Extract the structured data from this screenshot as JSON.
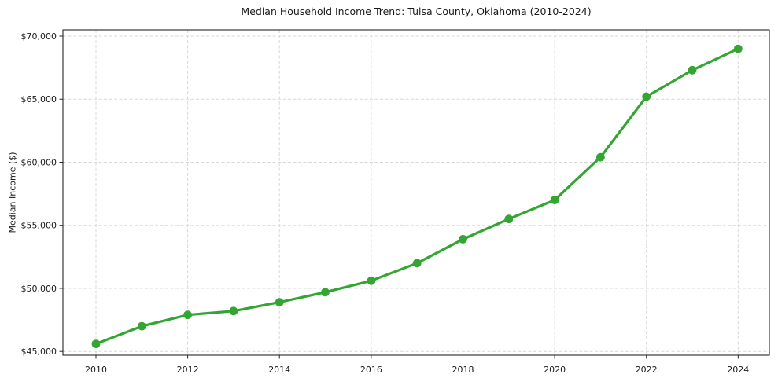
{
  "chart_data": {
    "type": "line",
    "title": "Median Household Income Trend: Tulsa County, Oklahoma (2010-2024)",
    "xlabel": "",
    "ylabel": "Median Income ($)",
    "x": [
      2010,
      2011,
      2012,
      2013,
      2014,
      2015,
      2016,
      2017,
      2018,
      2019,
      2020,
      2021,
      2022,
      2023,
      2024
    ],
    "values": [
      45600,
      47000,
      47900,
      48200,
      48900,
      49700,
      50600,
      52000,
      53900,
      55500,
      57000,
      60400,
      65200,
      67300,
      69000
    ],
    "x_ticks": [
      2010,
      2012,
      2014,
      2016,
      2018,
      2020,
      2022,
      2024
    ],
    "x_tick_labels": [
      "2010",
      "2012",
      "2014",
      "2016",
      "2018",
      "2020",
      "2022",
      "2024"
    ],
    "y_ticks": [
      45000,
      50000,
      55000,
      60000,
      65000,
      70000
    ],
    "y_tick_labels": [
      "$45,000",
      "$50,000",
      "$55,000",
      "$60,000",
      "$65,000",
      "$70,000"
    ],
    "xlim": [
      2009.28,
      2024.68
    ],
    "ylim": [
      44700,
      70500
    ],
    "grid": true,
    "grid_style": "dashed",
    "legend": "none",
    "marker": "circle",
    "colors": {
      "line": "#33a532",
      "grid": "#d8d8d8",
      "spine": "#262626",
      "text": "#1a1a1a",
      "background": "#ffffff"
    }
  }
}
